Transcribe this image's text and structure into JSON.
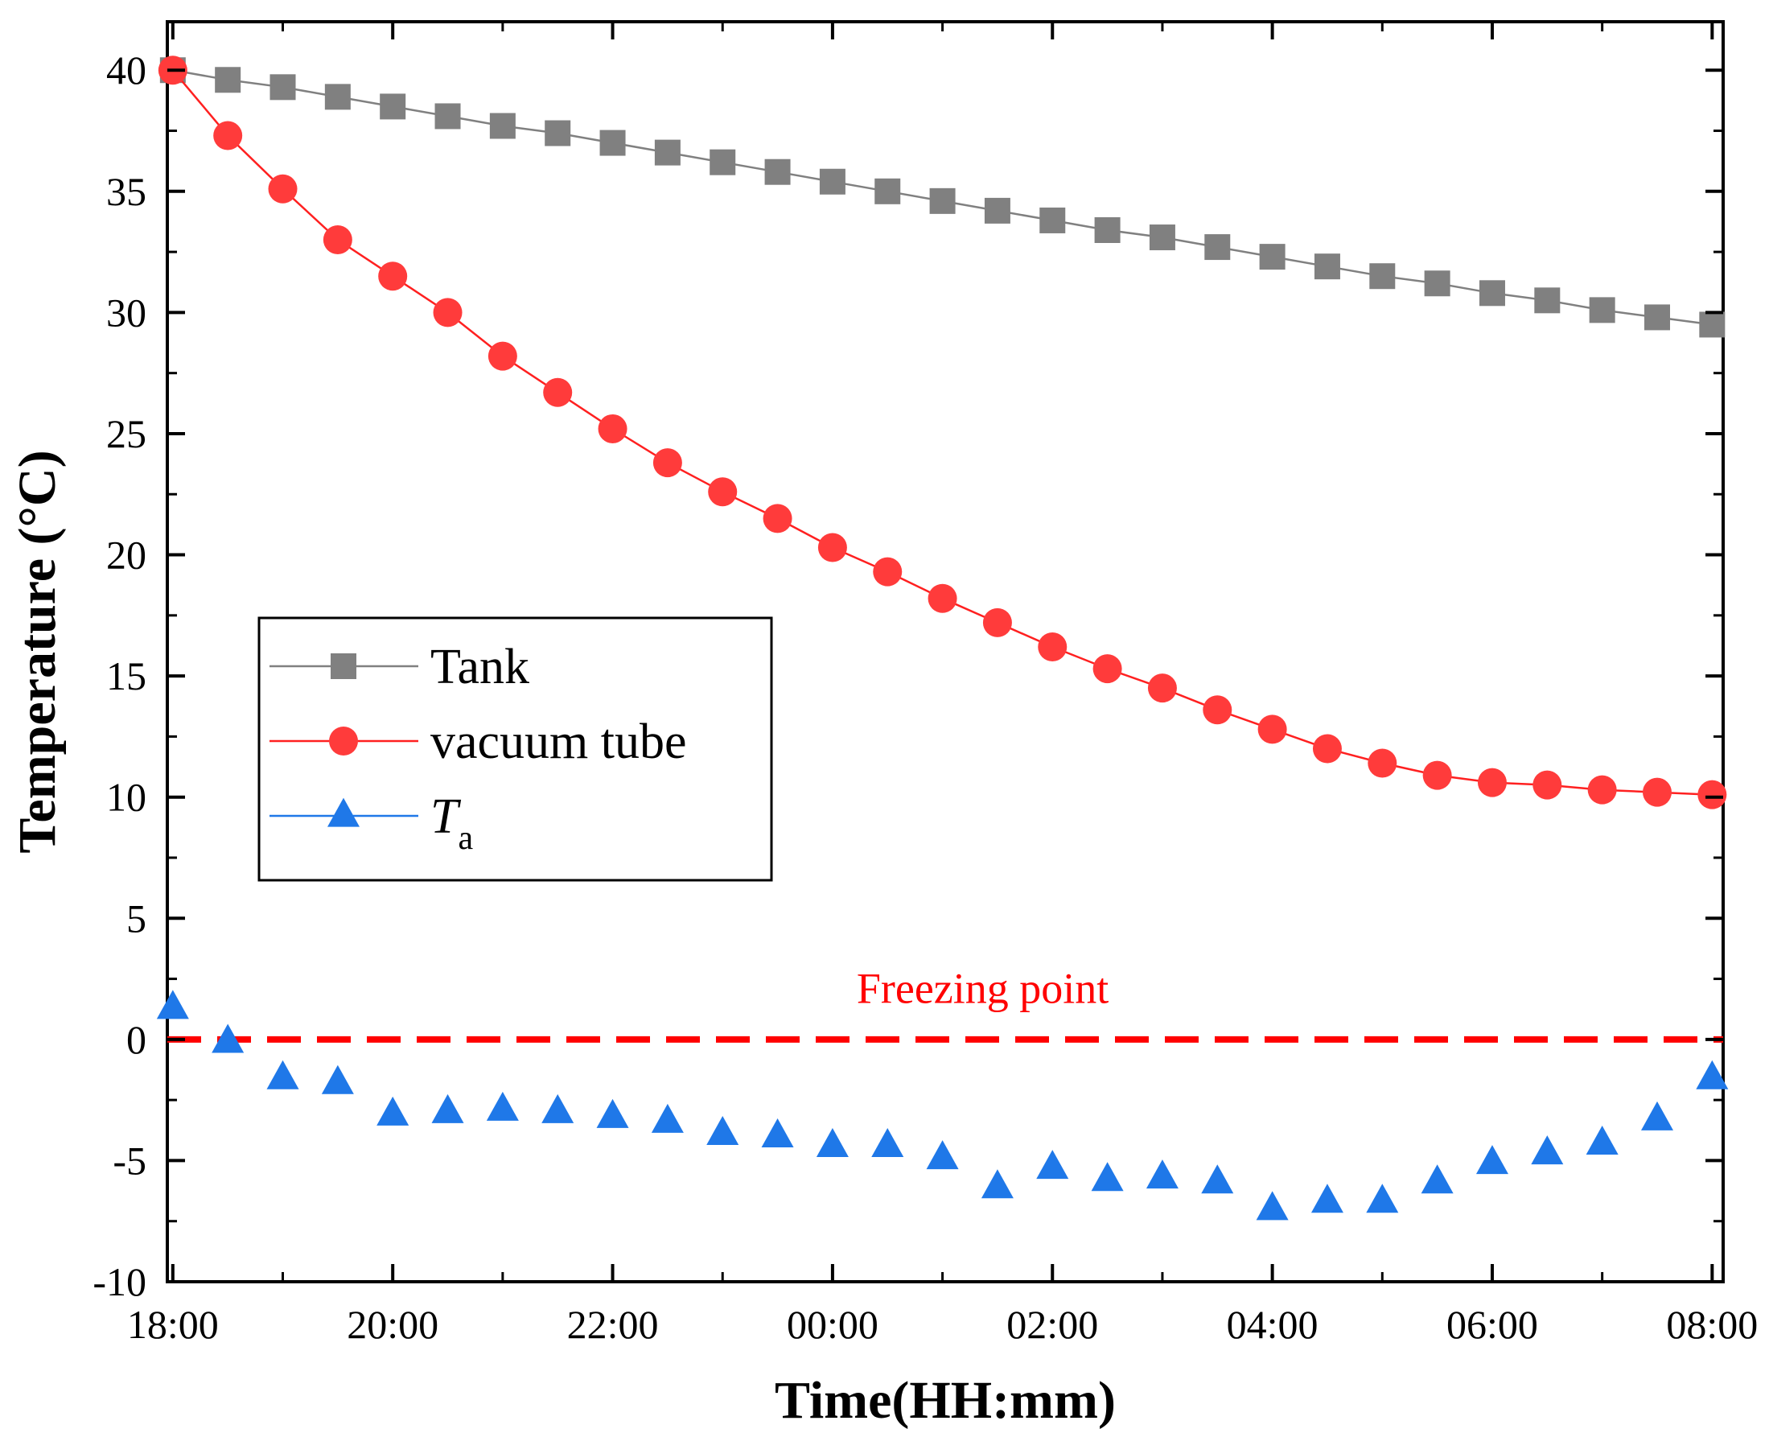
{
  "chart_data": {
    "type": "line",
    "title": "",
    "xlabel": "Time(HH:mm)",
    "ylabel": "Temperature (°C)",
    "xlim": [
      -0.05,
      14.1
    ],
    "ylim": [
      -10,
      42
    ],
    "x_ticks": [
      0,
      2,
      4,
      6,
      8,
      10,
      12,
      14
    ],
    "x_tick_labels": [
      "18:00",
      "20:00",
      "22:00",
      "00:00",
      "02:00",
      "04:00",
      "06:00",
      "08:00"
    ],
    "y_ticks": [
      -10,
      -5,
      0,
      5,
      10,
      15,
      20,
      25,
      30,
      35,
      40
    ],
    "y_tick_labels": [
      "-10",
      "-5",
      "0",
      "5",
      "10",
      "15",
      "20",
      "25",
      "30",
      "35",
      "40"
    ],
    "x": [
      0,
      0.5,
      1,
      1.5,
      2,
      2.5,
      3,
      3.5,
      4,
      4.5,
      5,
      5.5,
      6,
      6.5,
      7,
      7.5,
      8,
      8.5,
      9,
      9.5,
      10,
      10.5,
      11,
      11.5,
      12,
      12.5,
      13,
      13.5,
      14
    ],
    "series": [
      {
        "name": "Tank",
        "legend_main": "Tank",
        "legend_sub": "",
        "color": "#808080",
        "line_color": "#808080",
        "marker": "square",
        "show_line": true,
        "values": [
          40.0,
          39.6,
          39.3,
          38.9,
          38.5,
          38.1,
          37.7,
          37.4,
          37.0,
          36.6,
          36.2,
          35.8,
          35.4,
          35.0,
          34.6,
          34.2,
          33.8,
          33.4,
          33.1,
          32.7,
          32.3,
          31.9,
          31.5,
          31.2,
          30.8,
          30.5,
          30.1,
          29.8,
          29.5
        ]
      },
      {
        "name": "vacuum tube",
        "legend_main": "vacuum tube",
        "legend_sub": "",
        "color": "#ff3b3b",
        "line_color": "#ff2020",
        "marker": "circle",
        "show_line": true,
        "values": [
          40.0,
          37.3,
          35.1,
          33.0,
          31.5,
          30.0,
          28.2,
          26.7,
          25.2,
          23.8,
          22.6,
          21.5,
          20.3,
          19.3,
          18.2,
          17.2,
          16.2,
          15.3,
          14.5,
          13.6,
          12.8,
          12.0,
          11.4,
          10.9,
          10.6,
          10.5,
          10.3,
          10.2,
          10.1
        ]
      },
      {
        "name": "Ta",
        "legend_main": "T",
        "legend_sub": "a",
        "color": "#1f78e8",
        "line_color": "#1f78e8",
        "marker": "triangle",
        "show_line": false,
        "values": [
          1.3,
          -0.1,
          -1.6,
          -1.8,
          -3.1,
          -3.0,
          -2.9,
          -3.0,
          -3.2,
          -3.4,
          -3.9,
          -4.0,
          -4.4,
          -4.4,
          -4.9,
          -6.1,
          -5.3,
          -5.8,
          -5.7,
          -5.9,
          -7.0,
          -6.7,
          -6.7,
          -5.9,
          -5.1,
          -4.7,
          -4.3,
          -3.3,
          -1.6
        ]
      }
    ],
    "reference_line": {
      "y": 0,
      "color": "#ff0000",
      "style": "dashed"
    },
    "annotations": [
      {
        "text": "Freezing point",
        "x": 7.0,
        "y": 2.0,
        "color": "#ff0000"
      }
    ],
    "legend": {
      "position": "center-left"
    },
    "grid": false
  }
}
